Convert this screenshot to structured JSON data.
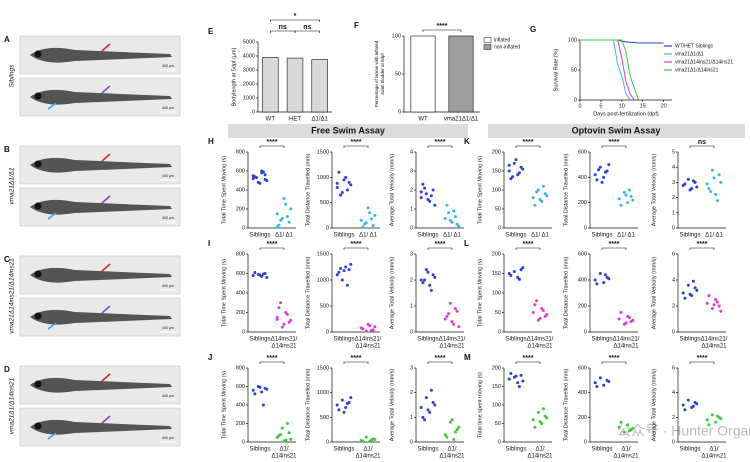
{
  "fish_panels": [
    {
      "letter": "A",
      "label": "Siblings",
      "scale_bars": [
        "400 µm",
        "400 µm"
      ]
    },
    {
      "letter": "B",
      "label": "vma21Δ1/Δ1",
      "scale_bars": [
        "400 µm",
        "400 µm"
      ]
    },
    {
      "letter": "C",
      "label": "vma21Δ14ins21/Δ14ins21",
      "scale_bars": [
        "400 µm",
        "400 µm"
      ]
    },
    {
      "letter": "D",
      "label": "vma21Δ1/Δ14ins21",
      "scale_bars": [
        "400 µm",
        "400 µm"
      ]
    }
  ],
  "sections": [
    "Free Swim Assay",
    "Optovin Swim Assay"
  ],
  "watermark": "公众号 · Hunter Organs",
  "chart_data": [
    {
      "type": "bar",
      "letter": "E",
      "ylabel": "Bodylength at 5dpf (µm)",
      "categories": [
        "WT",
        "HET",
        "Δ1/Δ1"
      ],
      "values": [
        3900,
        3850,
        3750
      ],
      "color": "#d9d9d9",
      "ylim": [
        0,
        5000
      ],
      "yticks": [
        0,
        1000,
        2000,
        3000,
        4000,
        5000
      ],
      "annotations": [
        "*",
        "ns",
        "ns"
      ]
    },
    {
      "type": "stacked",
      "letter": "F",
      "ylabel": [
        "Percentage of larvae with inflated",
        "swim bladder at 5dpf"
      ],
      "categories": [
        "WT",
        "vma21Δ1/Δ1"
      ],
      "series": [
        {
          "name": "inflated",
          "color": "#ffffff",
          "values": [
            100,
            0
          ]
        },
        {
          "name": "non-inflated",
          "color": "#9e9e9e",
          "values": [
            0,
            100
          ]
        }
      ],
      "ylim": [
        0,
        100
      ],
      "yticks": [
        0,
        50,
        100
      ],
      "annotations": [
        "****"
      ]
    },
    {
      "type": "line",
      "letter": "G",
      "ylabel": "Survival Rate (%)",
      "xlabel": "Days post-fertilization (dpf)",
      "x": [
        0,
        5,
        8,
        9,
        10,
        11,
        12,
        13,
        14,
        15,
        20
      ],
      "xlim": [
        0,
        22
      ],
      "xticks": [
        0,
        5,
        10,
        15,
        20
      ],
      "ylim": [
        0,
        100
      ],
      "yticks": [
        0,
        50,
        100
      ],
      "series": [
        {
          "name": "WT/HET Siblings",
          "color": "#2a3fd6",
          "values": [
            100,
            100,
            100,
            100,
            98,
            97,
            96,
            96,
            95,
            95,
            95
          ]
        },
        {
          "name": "vma21Δ1/Δ1",
          "color": "#34b6ea",
          "values": [
            100,
            100,
            100,
            60,
            40,
            10,
            0,
            null,
            null,
            null,
            null
          ]
        },
        {
          "name": "vma21Δ14ins21/Δ14ins21",
          "color": "#e03ad3",
          "values": [
            100,
            100,
            100,
            100,
            70,
            30,
            10,
            0,
            null,
            null,
            null
          ]
        },
        {
          "name": "vma21Δ1/Δ14ins21",
          "color": "#3cc83c",
          "values": [
            100,
            100,
            100,
            100,
            100,
            80,
            40,
            20,
            0,
            null,
            null
          ]
        }
      ]
    },
    {
      "type": "dot",
      "letter": "H",
      "ylabel": "Total Time Spent Moving (s)",
      "categories": [
        [
          "Siblings"
        ],
        [
          "Δ1/ Δ1"
        ]
      ],
      "ylim": [
        0,
        800
      ],
      "yticks": [
        0,
        200,
        400,
        600,
        800
      ],
      "annotations": [
        "****"
      ],
      "groups": [
        {
          "color": "#2a3fd6",
          "values": [
            520,
            560,
            600,
            480,
            540,
            500,
            590,
            470,
            530,
            550,
            510,
            580
          ]
        },
        {
          "color": "#34b6ea",
          "values": [
            150,
            60,
            250,
            100,
            30,
            200,
            120,
            310,
            80,
            10
          ]
        }
      ]
    },
    {
      "type": "dot",
      "ylabel": "Total Distance Travelled (mm)",
      "categories": [
        [
          "Siblings"
        ],
        [
          "Δ1/ Δ1"
        ]
      ],
      "ylim": [
        0,
        1500
      ],
      "yticks": [
        0,
        500,
        1000,
        1500
      ],
      "annotations": [
        "****"
      ],
      "groups": [
        {
          "color": "#2a3fd6",
          "values": [
            800,
            900,
            1000,
            700,
            1100,
            850,
            750,
            950,
            650,
            880
          ]
        },
        {
          "color": "#34b6ea",
          "values": [
            150,
            50,
            300,
            100,
            20,
            250,
            180,
            400,
            80
          ]
        }
      ]
    },
    {
      "type": "dot",
      "ylabel": "Average Total Velocity (mm/s)",
      "categories": [
        [
          "Siblings"
        ],
        [
          "Δ1/ Δ1"
        ]
      ],
      "ylim": [
        0,
        4
      ],
      "yticks": [
        0,
        1,
        2,
        3,
        4
      ],
      "annotations": [
        "****"
      ],
      "groups": [
        {
          "color": "#2a3fd6",
          "values": [
            1.6,
            2.0,
            1.4,
            1.8,
            2.3,
            1.2,
            1.7,
            1.5,
            2.1,
            1.9
          ]
        },
        {
          "color": "#34b6ea",
          "values": [
            0.5,
            0.2,
            0.9,
            0.4,
            1.2,
            0.1,
            0.6,
            0.3,
            0.8
          ]
        }
      ]
    },
    {
      "type": "dot",
      "letter": "I",
      "ylabel": "Total Time Spent Moving (s)",
      "categories": [
        [
          "Siblings"
        ],
        [
          "Δ14ins21/",
          "Δ14ins21"
        ]
      ],
      "ylim": [
        0,
        800
      ],
      "yticks": [
        0,
        200,
        400,
        600,
        800
      ],
      "annotations": [
        "****"
      ],
      "groups": [
        {
          "color": "#2a3fd6",
          "values": [
            580,
            600,
            570,
            590,
            610,
            560,
            595,
            585
          ]
        },
        {
          "color": "#e03ad3",
          "values": [
            150,
            100,
            200,
            50,
            250,
            120,
            180,
            80,
            300,
            130
          ]
        }
      ]
    },
    {
      "type": "dot",
      "ylabel": "Total Distance Travelled (mm)",
      "categories": [
        [
          "Siblings"
        ],
        [
          "Δ14ins21/",
          "Δ14ins21"
        ]
      ],
      "ylim": [
        0,
        1500
      ],
      "yticks": [
        0,
        500,
        1000,
        1500
      ],
      "annotations": [
        "****"
      ],
      "groups": [
        {
          "color": "#2a3fd6",
          "values": [
            1100,
            1200,
            1250,
            1000,
            1150,
            1300,
            900,
            1180,
            1220
          ]
        },
        {
          "color": "#e03ad3",
          "values": [
            80,
            40,
            120,
            20,
            60,
            100,
            30,
            150
          ]
        }
      ]
    },
    {
      "type": "dot",
      "ylabel": "Average Total Velocity (mm/s)",
      "categories": [
        [
          "Siblings"
        ],
        [
          "Δ14ins21/",
          "Δ14ins21"
        ]
      ],
      "ylim": [
        0,
        3
      ],
      "yticks": [
        0,
        1,
        2,
        3
      ],
      "annotations": [
        "****"
      ],
      "groups": [
        {
          "color": "#2a3fd6",
          "values": [
            2.0,
            2.2,
            1.8,
            2.4,
            1.9,
            2.1,
            1.6,
            2.3,
            2.0
          ]
        },
        {
          "color": "#e03ad3",
          "values": [
            0.5,
            0.8,
            0.3,
            1.1,
            0.6,
            0.2,
            0.9,
            0.4,
            0.7
          ]
        }
      ]
    },
    {
      "type": "dot",
      "letter": "J",
      "ylabel": "Total Time Spent Moving (s)",
      "categories": [
        [
          "Siblings"
        ],
        [
          "Δ1/",
          "Δ14ins21"
        ]
      ],
      "ylim": [
        0,
        800
      ],
      "yticks": [
        0,
        200,
        400,
        600,
        800
      ],
      "annotations": [
        "****"
      ],
      "groups": [
        {
          "color": "#2a3fd6",
          "values": [
            560,
            580,
            540,
            600,
            520,
            570,
            400,
            590
          ]
        },
        {
          "color": "#3cc83c",
          "values": [
            50,
            100,
            20,
            150,
            70,
            30,
            200,
            10,
            80
          ]
        }
      ]
    },
    {
      "type": "dot",
      "ylabel": "Total Distance Travelled (mm)",
      "categories": [
        [
          "Siblings"
        ],
        [
          "Δ1/",
          "Δ14ins21"
        ]
      ],
      "ylim": [
        0,
        1500
      ],
      "yticks": [
        0,
        500,
        1000,
        1500
      ],
      "annotations": [
        "****"
      ],
      "groups": [
        {
          "color": "#2a3fd6",
          "values": [
            750,
            800,
            700,
            850,
            650,
            900,
            780,
            600
          ]
        },
        {
          "color": "#3cc83c",
          "values": [
            30,
            60,
            10,
            100,
            20,
            50,
            40
          ]
        }
      ]
    },
    {
      "type": "dot",
      "ylabel": "Average Total Velocity (mm/s)",
      "categories": [
        [
          "Siblings"
        ],
        [
          "Δ1/",
          "Δ14ins21"
        ]
      ],
      "ylim": [
        0,
        3
      ],
      "yticks": [
        0,
        1,
        2,
        3
      ],
      "annotations": [
        "****"
      ],
      "groups": [
        {
          "color": "#2a3fd6",
          "values": [
            1.4,
            1.6,
            1.2,
            1.8,
            1.0,
            1.5,
            2.1,
            1.3,
            0.9
          ]
        },
        {
          "color": "#3cc83c",
          "values": [
            0.3,
            0.5,
            0.1,
            0.8,
            0.2,
            0.6,
            0.4,
            0.9
          ]
        }
      ]
    },
    {
      "type": "dot",
      "letter": "K",
      "ylabel": "Total Time Spent Moving (s)",
      "categories": [
        [
          "Siblings"
        ],
        [
          "Δ1/ Δ1"
        ]
      ],
      "ylim": [
        0,
        200
      ],
      "yticks": [
        0,
        50,
        100,
        150,
        200
      ],
      "annotations": [
        "****"
      ],
      "groups": [
        {
          "color": "#2a3fd6",
          "values": [
            150,
            160,
            140,
            170,
            130,
            155,
            145,
            180,
            135,
            165
          ]
        },
        {
          "color": "#34b6ea",
          "values": [
            80,
            90,
            70,
            100,
            60,
            85,
            110,
            75,
            95
          ]
        }
      ]
    },
    {
      "type": "dot",
      "ylabel": "Total Distance Travelled (mm)",
      "categories": [
        [
          "Siblings"
        ],
        [
          "Δ1/ Δ1"
        ]
      ],
      "ylim": [
        0,
        600
      ],
      "yticks": [
        0,
        200,
        400,
        600
      ],
      "annotations": [
        "****"
      ],
      "groups": [
        {
          "color": "#2a3fd6",
          "values": [
            420,
            450,
            400,
            480,
            380,
            500,
            440,
            360,
            460
          ]
        },
        {
          "color": "#34b6ea",
          "values": [
            230,
            250,
            200,
            280,
            180,
            220,
            300,
            260
          ]
        }
      ]
    },
    {
      "type": "dot",
      "ylabel": "Average Total Velocity (mm/s)",
      "categories": [
        [
          "Siblings"
        ],
        [
          "Δ1/ Δ1"
        ]
      ],
      "ylim": [
        0,
        5
      ],
      "yticks": [
        0,
        1,
        2,
        3,
        4,
        5
      ],
      "annotations": [
        "ns"
      ],
      "groups": [
        {
          "color": "#2a3fd6",
          "values": [
            2.8,
            3.0,
            2.6,
            3.2,
            2.9,
            2.7,
            3.1,
            2.5
          ]
        },
        {
          "color": "#34b6ea",
          "values": [
            2.9,
            3.5,
            2.2,
            3.8,
            2.6,
            3.0,
            1.8,
            3.3,
            2.4
          ]
        }
      ]
    },
    {
      "type": "dot",
      "letter": "L",
      "ylabel": "Total Time Spent Moving (s)",
      "categories": [
        [
          "Siblings"
        ],
        [
          "Δ14ins21/",
          "Δ14ins21"
        ]
      ],
      "ylim": [
        0,
        200
      ],
      "yticks": [
        0,
        50,
        100,
        150,
        200
      ],
      "annotations": [
        "****"
      ],
      "groups": [
        {
          "color": "#2a3fd6",
          "values": [
            150,
            160,
            140,
            155,
            145,
            165,
            135
          ]
        },
        {
          "color": "#e03ad3",
          "values": [
            50,
            40,
            60,
            30,
            70,
            45,
            55,
            35,
            80
          ]
        }
      ]
    },
    {
      "type": "dot",
      "ylabel": "Total Distance Travelled (mm)",
      "categories": [
        [
          "Siblings"
        ],
        [
          "Δ14ins21/",
          "Δ14ins21"
        ]
      ],
      "ylim": [
        0,
        600
      ],
      "yticks": [
        0,
        200,
        400,
        600
      ],
      "annotations": [
        "****"
      ],
      "groups": [
        {
          "color": "#2a3fd6",
          "values": [
            400,
            420,
            380,
            450,
            370,
            410,
            440
          ]
        },
        {
          "color": "#e03ad3",
          "values": [
            100,
            80,
            120,
            60,
            150,
            90,
            110,
            70
          ]
        }
      ]
    },
    {
      "type": "dot",
      "ylabel": "Average Total Velocity (mm/s)",
      "categories": [
        [
          "Siblings"
        ],
        [
          "Δ14ins21/",
          "Δ14ins21"
        ]
      ],
      "ylim": [
        0,
        6
      ],
      "yticks": [
        0,
        2,
        4,
        6
      ],
      "annotations": [
        "****"
      ],
      "groups": [
        {
          "color": "#2a3fd6",
          "values": [
            3.0,
            3.4,
            2.8,
            3.6,
            2.6,
            3.2,
            3.9,
            2.9
          ]
        },
        {
          "color": "#e03ad3",
          "values": [
            2.2,
            2.0,
            2.5,
            1.8,
            2.8,
            1.6,
            2.3,
            2.1
          ]
        }
      ]
    },
    {
      "type": "dot",
      "letter": "M",
      "ylabel": "Total time spent moving (s)",
      "categories": [
        [
          "Siblings"
        ],
        [
          "Δ1/",
          "Δ14ins21"
        ]
      ],
      "ylim": [
        0,
        200
      ],
      "yticks": [
        0,
        50,
        100,
        150,
        200
      ],
      "annotations": [
        "****"
      ],
      "groups": [
        {
          "color": "#2a3fd6",
          "values": [
            170,
            180,
            160,
            175,
            185,
            165,
            150,
            178
          ]
        },
        {
          "color": "#3cc83c",
          "values": [
            60,
            70,
            50,
            80,
            40,
            65,
            90,
            55
          ]
        }
      ]
    },
    {
      "type": "dot",
      "ylabel": "Total Distance Travelled (mm)",
      "categories": [
        [
          "Siblings"
        ],
        [
          "Δ1/",
          "Δ14ins21"
        ]
      ],
      "ylim": [
        0,
        600
      ],
      "yticks": [
        0,
        200,
        400,
        600
      ],
      "annotations": [
        "****"
      ],
      "groups": [
        {
          "color": "#2a3fd6",
          "values": [
            480,
            500,
            460,
            520,
            450,
            490
          ]
        },
        {
          "color": "#3cc83c",
          "values": [
            120,
            100,
            140,
            80,
            160,
            110,
            90
          ]
        }
      ]
    },
    {
      "type": "dot",
      "ylabel": "Average Total Velocity (mm/s)",
      "categories": [
        [
          "Siblings"
        ],
        [
          "Δ1/",
          "Δ14ins21"
        ]
      ],
      "ylim": [
        0,
        6
      ],
      "yticks": [
        0,
        2,
        4,
        6
      ],
      "annotations": [
        "****"
      ],
      "groups": [
        {
          "color": "#2a3fd6",
          "values": [
            3.0,
            3.2,
            2.8,
            3.4,
            2.6,
            3.1,
            2.9
          ]
        },
        {
          "color": "#3cc83c",
          "values": [
            1.8,
            2.0,
            1.6,
            2.2,
            1.4,
            1.9,
            2.1
          ]
        }
      ]
    }
  ]
}
